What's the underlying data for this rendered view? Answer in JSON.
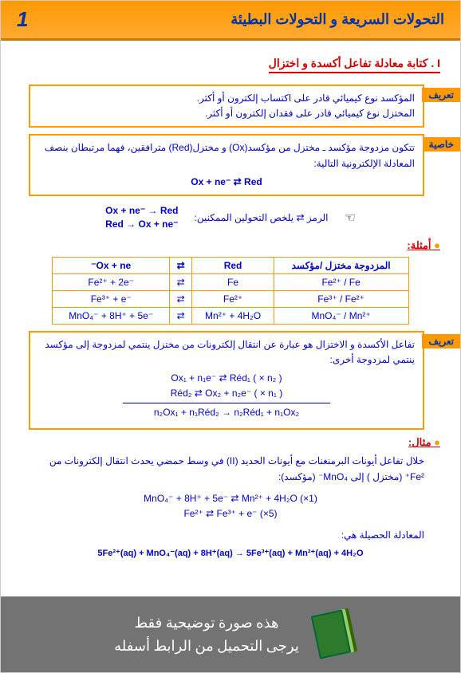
{
  "header": {
    "title": "التحولات السريعة و التحولات البطيئة",
    "num": "1"
  },
  "sec1": "I . كتابة معادلة تفاعل أكسدة و اختزال",
  "def1": {
    "tag": "تعريف",
    "line1": "المؤكسد نوع كيميائي قادر على اكتساب إلكترون أو أكثر.",
    "line2": "المختزل نوع كيميائي قادر على فقدان إلكترون أو أكثر."
  },
  "prop1": {
    "tag": "خاصية",
    "text": "تتكون مزدوجة مؤكسد ـ مختزل من مؤكسد(Ox) و مختزل(Red) مترافقين، فهما مرتبطان بنصف المعادلة الإلكترونية التالية:",
    "eq": "Ox + ne⁻ ⇄ Red"
  },
  "note": {
    "label": "الرمز ⇄ يلخص التحولين الممكنين:",
    "eq1": "Ox + ne⁻ → Red",
    "eq2": "Red → Ox + ne⁻"
  },
  "examples_head": "أمثلة:",
  "table": {
    "h1": "المزدوجة مختزل /مؤكسد",
    "h2": "Red",
    "h3": "Ox + ne⁻",
    "rows": [
      [
        "Fe²⁺ / Fe",
        "Fe",
        "⇄",
        "Fe²⁺ + 2e⁻"
      ],
      [
        "Fe³⁺ / Fe²⁺",
        "Fe²⁺",
        "⇄",
        "Fe³⁺ + e⁻"
      ],
      [
        "MnO₄⁻ / Mn²⁺",
        "Mn²⁺ + 4H₂O",
        "⇄",
        "MnO₄⁻ + 8H⁺ + 5e⁻"
      ]
    ]
  },
  "def2": {
    "tag": "تعريف",
    "text": "تفاعل الأكسدة و الاختزال هو عبارة عن انتقال إلكترونات من مختزل ينتمي لمزدوجة إلى مؤكسد ينتمي  لمزدوجة أخرى:",
    "eq1": "Ox₁ + n₁e⁻ ⇄ Réd₁     ( × n₂ )",
    "eq2": "Réd₂ ⇄ Ox₂ + n₂e⁻     ( × n₁ )",
    "eq3": "n₂Ox₁ + n₁Réd₂ → n₂Réd₁ + n₁Ox₂"
  },
  "example_head": "مثال:",
  "ex_text": "خلال تفاعل أيونات البرمنغنات مع أيونات الحديد (II) في وسط حمضي يحدث انتقال إلكترونات من Fe²⁺ (مختزل ) إلى MnO₄⁻ (مؤكسد):",
  "ex_eq1": "MnO₄⁻ + 8H⁺ + 5e⁻   ⇄  Mn²⁺ + 4H₂O            (×1)",
  "ex_eq2": "Fe²⁺   ⇄  Fe³⁺ + e⁻                 (×5)",
  "ex_final_label": "المعادلة الحصيلة هي:",
  "ex_final": "5Fe²⁺(aq) + MnO₄⁻(aq) + 8H⁺(aq)  →  5Fe³⁺(aq) + Mn²⁺(aq) + 4H₂O",
  "footer": {
    "line1": "هذه صورة توضيحية فقط",
    "line2": "يرجى التحميل من الرابط أسفله"
  }
}
